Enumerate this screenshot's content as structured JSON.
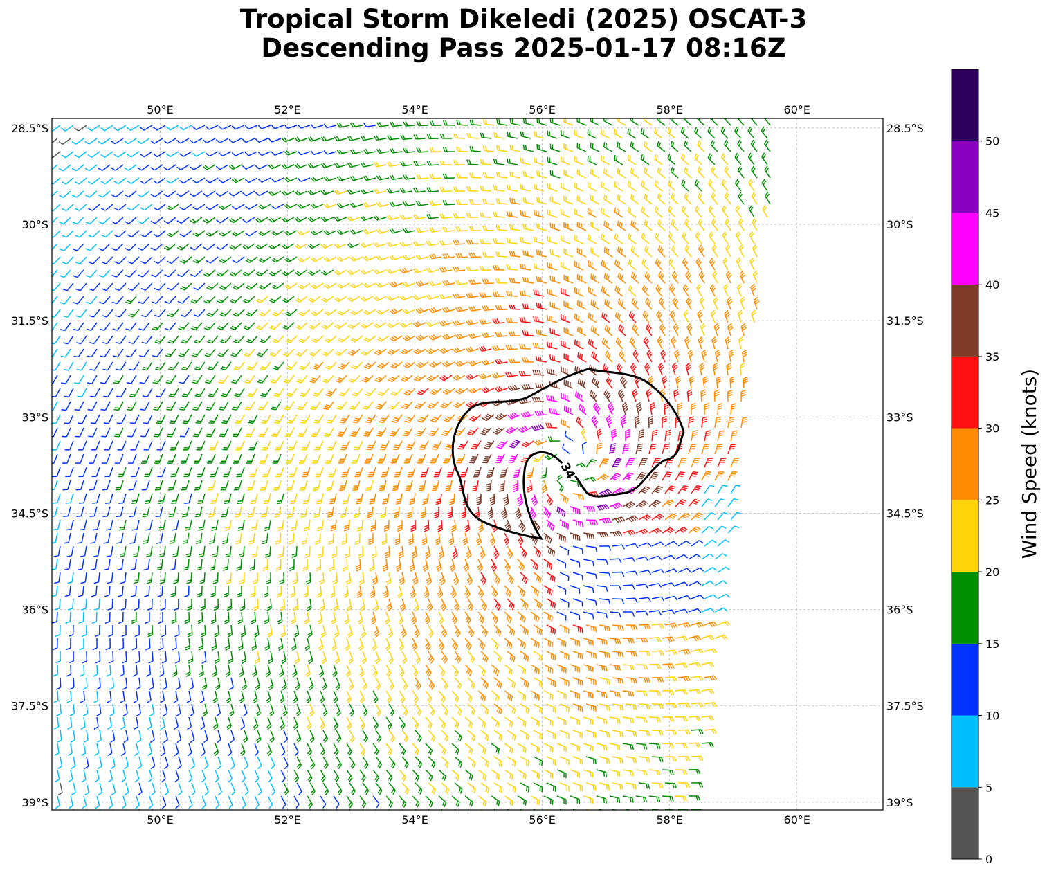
{
  "title_line1": "Tropical Storm Dikeledi (2025) OSCAT-3",
  "title_line2": "Descending Pass 2025-01-17 08:16Z",
  "lon_ticks": [
    "50°E",
    "52°E",
    "54°E",
    "56°E",
    "58°E",
    "60°E"
  ],
  "lon_values": [
    50,
    52,
    54,
    56,
    58,
    60
  ],
  "lat_ticks": [
    "28.5°S",
    "30°S",
    "31.5°S",
    "33°S",
    "34.5°S",
    "36°S",
    "37.5°S",
    "39°S"
  ],
  "lat_values": [
    -28.5,
    -30,
    -31.5,
    -33,
    -34.5,
    -36,
    -37.5,
    -39
  ],
  "map_extent": {
    "lon_min": 48.3,
    "lon_max": 61.35,
    "lat_max": -28.35,
    "lat_min": -39.12
  },
  "storm_center": {
    "lon": 56.4,
    "lat": -33.7
  },
  "contour_label": "34",
  "contour_level_kt": 34,
  "colorbar": {
    "label": "Wind Speed (knots)",
    "ticks": [
      "0",
      "5",
      "10",
      "15",
      "20",
      "25",
      "30",
      "35",
      "40",
      "45",
      "50"
    ],
    "bins": [
      {
        "min": 0,
        "max": 5,
        "color": "#555555"
      },
      {
        "min": 5,
        "max": 10,
        "color": "#00bfff"
      },
      {
        "min": 10,
        "max": 15,
        "color": "#0033ff"
      },
      {
        "min": 15,
        "max": 20,
        "color": "#008f00"
      },
      {
        "min": 20,
        "max": 25,
        "color": "#ffd20a"
      },
      {
        "min": 25,
        "max": 30,
        "color": "#ff8c00"
      },
      {
        "min": 30,
        "max": 35,
        "color": "#ff0f0f"
      },
      {
        "min": 35,
        "max": 40,
        "color": "#7f3b2a"
      },
      {
        "min": 40,
        "max": 45,
        "color": "#ff00ff"
      },
      {
        "min": 45,
        "max": 50,
        "color": "#8a00c0"
      },
      {
        "min": 50,
        "max": 55,
        "color": "#2c005c"
      }
    ]
  }
}
